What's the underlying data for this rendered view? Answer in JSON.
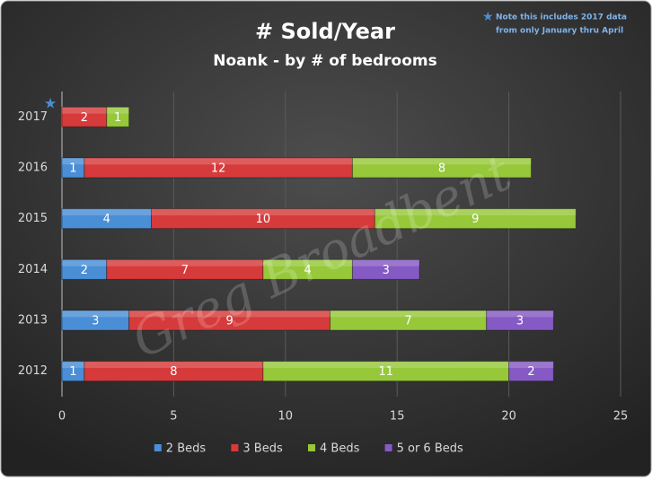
{
  "chart_data": {
    "type": "stacked-bar-horizontal",
    "title": "# Sold/Year",
    "subtitle": "Noank - by # of bedrooms",
    "annotation": [
      "Note this includes 2017 data",
      "from only January  thru April"
    ],
    "watermark": "Greg Broadbent",
    "categories": [
      "2017",
      "2016",
      "2015",
      "2014",
      "2013",
      "2012"
    ],
    "series": [
      {
        "name": "2 Beds",
        "color": "#4a8ed6",
        "values": [
          null,
          1,
          4,
          2,
          3,
          1
        ]
      },
      {
        "name": "3 Beds",
        "color": "#d63a3a",
        "values": [
          2,
          12,
          10,
          7,
          9,
          8
        ]
      },
      {
        "name": "4 Beds",
        "color": "#96c83a",
        "values": [
          1,
          8,
          9,
          4,
          7,
          11
        ]
      },
      {
        "name": "5 or 6 Beds",
        "color": "#855ac4",
        "values": [
          null,
          null,
          null,
          3,
          3,
          2
        ]
      }
    ],
    "xlim": [
      0,
      25
    ],
    "xticks": [
      0,
      5,
      10,
      15,
      20,
      25
    ],
    "grid": true,
    "legend": "bottom"
  }
}
